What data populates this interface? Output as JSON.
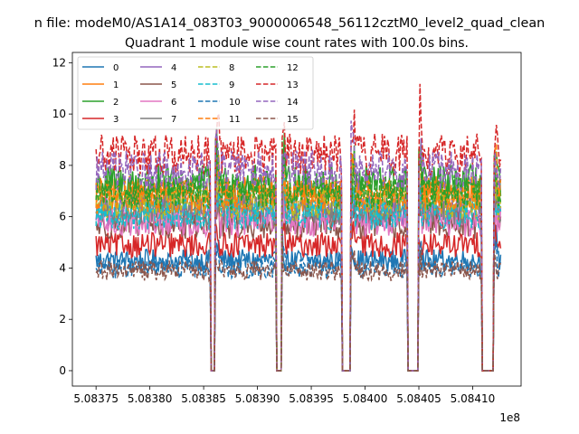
{
  "chart_data": {
    "type": "line",
    "suptitle": "n file: modeM0/AS1A14_083T03_9000006548_56112cztM0_level2_quad_clean",
    "title": "Quadrant 1 module wise count rates with 100.0s bins.",
    "xlabel": "",
    "ylabel": "",
    "x_offset_label": "1e8",
    "xlim": [
      5.083728,
      5.084145
    ],
    "ylim": [
      -0.6,
      12.4
    ],
    "xticks": [
      5.08375,
      5.0838,
      5.08385,
      5.0839,
      5.08395,
      5.084,
      5.08405,
      5.0841
    ],
    "xtick_labels": [
      "5.08375",
      "5.08380",
      "5.08385",
      "5.08390",
      "5.08395",
      "5.08400",
      "5.08405",
      "5.08410"
    ],
    "yticks": [
      0,
      2,
      4,
      6,
      8,
      10,
      12
    ],
    "ytick_labels": [
      "0",
      "2",
      "4",
      "6",
      "8",
      "10",
      "12"
    ],
    "x_start": 5.08375,
    "x_end": 5.084126,
    "x_step": 1e-06,
    "gaps": [
      [
        5.083857,
        5.083861
      ],
      [
        5.083918,
        5.083922
      ],
      [
        5.083979,
        5.083987
      ],
      [
        5.08404,
        5.084049
      ],
      [
        5.084109,
        5.084119
      ]
    ],
    "legend": {
      "location": "upper left",
      "columns": 4
    },
    "grid": false,
    "series": [
      {
        "name": "0",
        "color": "#1f77b4",
        "dash": "solid",
        "mean": 4.3
      },
      {
        "name": "1",
        "color": "#ff7f0e",
        "dash": "solid",
        "mean": 6.9
      },
      {
        "name": "2",
        "color": "#2ca02c",
        "dash": "solid",
        "mean": 7.3
      },
      {
        "name": "3",
        "color": "#d62728",
        "dash": "solid",
        "mean": 4.9
      },
      {
        "name": "4",
        "color": "#9467bd",
        "dash": "solid",
        "mean": 6.2
      },
      {
        "name": "5",
        "color": "#8c564b",
        "dash": "solid",
        "mean": 5.7
      },
      {
        "name": "6",
        "color": "#e377c2",
        "dash": "solid",
        "mean": 5.8
      },
      {
        "name": "7",
        "color": "#7f7f7f",
        "dash": "solid",
        "mean": 6.3
      },
      {
        "name": "8",
        "color": "#bcbd22",
        "dash": "dashed",
        "mean": 6.5
      },
      {
        "name": "9",
        "color": "#17becf",
        "dash": "dashed",
        "mean": 6.1
      },
      {
        "name": "10",
        "color": "#1f77b4",
        "dash": "dashed",
        "mean": 4.0
      },
      {
        "name": "11",
        "color": "#ff7f0e",
        "dash": "dashed",
        "mean": 6.8
      },
      {
        "name": "12",
        "color": "#2ca02c",
        "dash": "dashed",
        "mean": 7.0
      },
      {
        "name": "13",
        "color": "#d62728",
        "dash": "dashed",
        "mean": 8.4
      },
      {
        "name": "14",
        "color": "#9467bd",
        "dash": "dashed",
        "mean": 7.8
      },
      {
        "name": "15",
        "color": "#8c564b",
        "dash": "dashed",
        "mean": 3.9
      }
    ]
  }
}
